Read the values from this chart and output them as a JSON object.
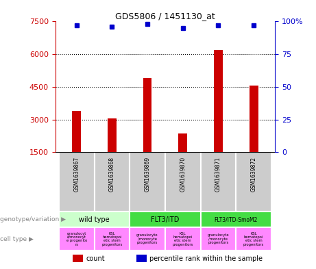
{
  "title": "GDS5806 / 1451130_at",
  "samples": [
    "GSM1639867",
    "GSM1639868",
    "GSM1639869",
    "GSM1639870",
    "GSM1639871",
    "GSM1639872"
  ],
  "counts": [
    3400,
    3050,
    4900,
    2350,
    6200,
    4550
  ],
  "percentiles": [
    97,
    96,
    98,
    95,
    97,
    97
  ],
  "ylim_left": [
    1500,
    7500
  ],
  "ylim_right": [
    0,
    100
  ],
  "yticks_left": [
    1500,
    3000,
    4500,
    6000,
    7500
  ],
  "yticks_right": [
    0,
    25,
    50,
    75,
    100
  ],
  "bar_color": "#cc0000",
  "dot_color": "#0000cc",
  "wt_color": "#ccffcc",
  "flt_color": "#44dd44",
  "cell_color": "#ff88ff",
  "sample_bg_color": "#cccccc",
  "legend_count_label": "count",
  "legend_percentile_label": "percentile rank within the sample",
  "genotype_label": "genotype/variation",
  "celltype_label": "cell type",
  "bar_width": 0.25,
  "cell_labels": [
    "granulocyt\ne/monocyt\ne progenito\nrs",
    "KSL\nhematopoi\netic stem\nprogenitors",
    "granulocyte\n/monocyte\nprogenitors",
    "KSL\nhematopoi\netic stem\nprogenitors",
    "granulocyte\n/monocyte\nprogenitors",
    "KSL\nhematopoi\netic stem\nprogenitors"
  ]
}
